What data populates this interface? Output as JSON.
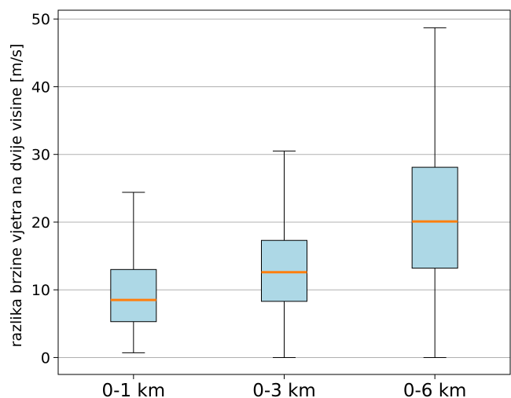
{
  "chart_data": {
    "type": "box",
    "title": "",
    "xlabel": "",
    "ylabel": "razlika brzine vjetra na dvije visine [m/s]",
    "ylim": [
      -2.5,
      51.3
    ],
    "yticks": [
      "0",
      "10",
      "20",
      "30",
      "40",
      "50"
    ],
    "ytick_values": [
      0,
      10,
      20,
      30,
      40,
      50
    ],
    "grid": "horizontal",
    "categories": [
      "0-1 km",
      "0-3 km",
      "0-6 km"
    ],
    "boxes": [
      {
        "category": "0-1 km",
        "whisker_low": 0.7,
        "q1": 5.3,
        "median": 8.5,
        "q3": 13.0,
        "whisker_high": 24.4
      },
      {
        "category": "0-3 km",
        "whisker_low": 0.0,
        "q1": 8.3,
        "median": 12.6,
        "q3": 17.3,
        "whisker_high": 30.5
      },
      {
        "category": "0-6 km",
        "whisker_low": 0.0,
        "q1": 13.2,
        "median": 20.1,
        "q3": 28.1,
        "whisker_high": 48.7
      }
    ],
    "colors": {
      "box_fill": "#add8e6",
      "median": "#ff7f0e",
      "line": "#000000",
      "grid": "#b0b0b0"
    }
  }
}
